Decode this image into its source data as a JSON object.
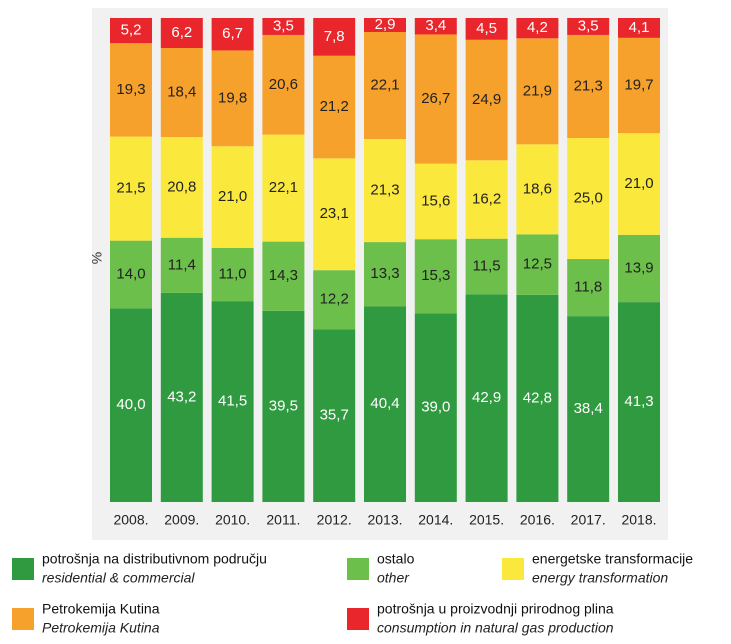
{
  "chart_data": {
    "type": "stacked_bar",
    "y_label": "%",
    "categories": [
      "2008.",
      "2009.",
      "2010.",
      "2011.",
      "2012.",
      "2013.",
      "2014.",
      "2015.",
      "2016.",
      "2017.",
      "2018."
    ],
    "ylim": [
      0,
      100
    ],
    "series": [
      {
        "name": "potrošnja na distributivnom području",
        "name_en": "residential & commercial",
        "color": "#2f9a3f",
        "values": [
          40.0,
          43.2,
          41.5,
          39.5,
          35.7,
          40.4,
          39.0,
          42.9,
          42.8,
          38.4,
          41.3
        ],
        "value_labels": [
          "40,0",
          "43,2",
          "41,5",
          "39,5",
          "35,7",
          "40,4",
          "39,0",
          "42,9",
          "42,8",
          "38,4",
          "41,3"
        ]
      },
      {
        "name": "ostalo",
        "name_en": "other",
        "color": "#6cbf4a",
        "values": [
          14.0,
          11.4,
          11.0,
          14.3,
          12.2,
          13.3,
          15.3,
          11.5,
          12.5,
          11.8,
          13.9
        ],
        "value_labels": [
          "14,0",
          "11,4",
          "11,0",
          "14,3",
          "12,2",
          "13,3",
          "15,3",
          "11,5",
          "12,5",
          "11,8",
          "13,9"
        ]
      },
      {
        "name": "energetske transformacije",
        "name_en": "energy transformation",
        "color": "#fbe83d",
        "values": [
          21.5,
          20.8,
          21.0,
          22.1,
          23.1,
          21.3,
          15.6,
          16.2,
          18.6,
          25.0,
          21.0
        ],
        "value_labels": [
          "21,5",
          "20,8",
          "21,0",
          "22,1",
          "23,1",
          "21,3",
          "15,6",
          "16,2",
          "18,6",
          "25,0",
          "21,0"
        ]
      },
      {
        "name": "Petrokemija Kutina",
        "name_en": "Petrokemija Kutina",
        "color": "#f7a12d",
        "values": [
          19.3,
          18.4,
          19.8,
          20.6,
          21.2,
          22.1,
          26.7,
          24.9,
          21.9,
          21.3,
          19.7
        ],
        "value_labels": [
          "19,3",
          "18,4",
          "19,8",
          "20,6",
          "21,2",
          "22,1",
          "26,7",
          "24,9",
          "21,9",
          "21,3",
          "19,7"
        ]
      },
      {
        "name": "potrošnja u proizvodnji prirodnog plina",
        "name_en": "consumption in natural gas production",
        "color": "#e8262b",
        "values": [
          5.2,
          6.2,
          6.7,
          3.5,
          7.8,
          2.9,
          3.4,
          4.5,
          4.2,
          3.5,
          4.1
        ],
        "value_labels": [
          "5,2",
          "6,2",
          "6,7",
          "3,5",
          "7,8",
          "2,9",
          "3,4",
          "4,5",
          "4,2",
          "3,5",
          "4,1"
        ]
      }
    ]
  }
}
